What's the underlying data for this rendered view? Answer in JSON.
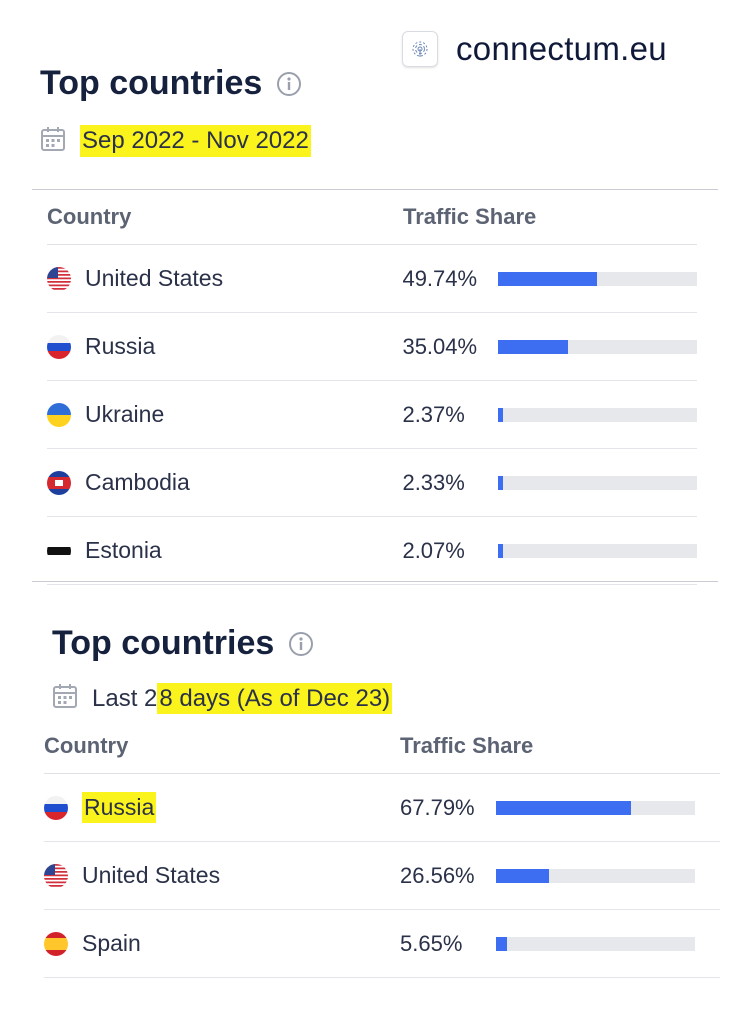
{
  "brand": {
    "name": "connectum.eu",
    "icon": "fingerprint-icon"
  },
  "sections": [
    {
      "title": "Top countries",
      "date_label": "Sep 2022 - Nov 2022",
      "columns": {
        "country": "Country",
        "share": "Traffic Share"
      },
      "rows": [
        {
          "country": "United States",
          "flag": "us",
          "share_label": "49.74%",
          "share": 0.4974
        },
        {
          "country": "Russia",
          "flag": "ru",
          "share_label": "35.04%",
          "share": 0.3504
        },
        {
          "country": "Ukraine",
          "flag": "ua",
          "share_label": "2.37%",
          "share": 0.0237
        },
        {
          "country": "Cambodia",
          "flag": "kh",
          "share_label": "2.33%",
          "share": 0.0233
        },
        {
          "country": "Estonia",
          "flag": "ee",
          "share_label": "2.07%",
          "share": 0.0207
        }
      ]
    },
    {
      "title": "Top countries",
      "date_prefix": "Last 2",
      "date_highlight": "8 days (As of Dec 23)",
      "columns": {
        "country": "Country",
        "share": "Traffic Share"
      },
      "rows": [
        {
          "country": "Russia",
          "flag": "ru",
          "share_label": "67.79%",
          "share": 0.6779
        },
        {
          "country": "United States",
          "flag": "us",
          "share_label": "26.56%",
          "share": 0.2656
        },
        {
          "country": "Spain",
          "flag": "es",
          "share_label": "5.65%",
          "share": 0.0565
        }
      ]
    }
  ],
  "colors": {
    "bar_fill": "#3d6ef2",
    "bar_track": "#e6e8ec",
    "highlight": "#fbf31c"
  }
}
